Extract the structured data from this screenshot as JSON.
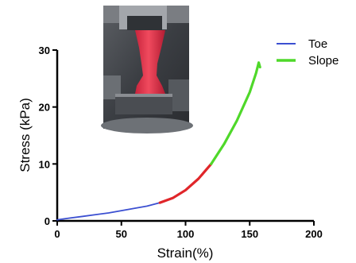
{
  "chart_data": {
    "type": "line",
    "xlabel": "Strain(%)",
    "ylabel": "Stress (kPa)",
    "xlim": [
      0,
      200
    ],
    "ylim": [
      0,
      30
    ],
    "x_ticks": [
      "0",
      "50",
      "100",
      "150",
      "200"
    ],
    "y_ticks": [
      "0",
      "10",
      "20",
      "30"
    ],
    "grid": false,
    "legend_position": "top-right",
    "series": [
      {
        "name": "Toe",
        "color": "#3b4fd1",
        "x": [
          0,
          10,
          20,
          30,
          40,
          50,
          60,
          70,
          80
        ],
        "y": [
          0.2,
          0.5,
          0.8,
          1.1,
          1.4,
          1.8,
          2.2,
          2.6,
          3.2
        ]
      },
      {
        "name": "",
        "color": "#e0262a",
        "x": [
          80,
          90,
          100,
          110,
          120
        ],
        "y": [
          3.2,
          4.0,
          5.4,
          7.4,
          10.0
        ]
      },
      {
        "name": "Slope",
        "color": "#4fd82a",
        "x": [
          120,
          130,
          140,
          150,
          155,
          157,
          158
        ],
        "y": [
          10.0,
          13.5,
          17.6,
          22.6,
          26.0,
          27.8,
          27.0
        ]
      }
    ],
    "inset_image": "photo of red specimen clamped in tensile testing grips"
  }
}
